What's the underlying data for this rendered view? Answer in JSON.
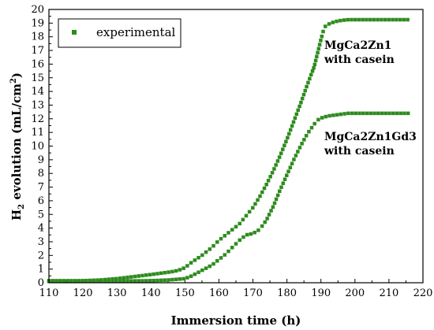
{
  "chart_data": {
    "type": "scatter",
    "xlabel": "Immersion time (h)",
    "ylabel_main": "H",
    "ylabel_sub": "2",
    "ylabel_rest": " evolution (mL/cm",
    "ylabel_sup": "2",
    "ylabel_end": ")",
    "xlim": [
      110,
      220
    ],
    "ylim": [
      0,
      20
    ],
    "xticks": [
      110,
      120,
      130,
      140,
      150,
      160,
      170,
      180,
      190,
      200,
      210,
      220
    ],
    "yticks": [
      0,
      1,
      2,
      3,
      4,
      5,
      6,
      7,
      8,
      9,
      10,
      11,
      12,
      13,
      14,
      15,
      16,
      17,
      18,
      19,
      20
    ],
    "legend": {
      "label": "experimental",
      "position": "top-left"
    },
    "marker_color": "#2e8b1e",
    "annotations": [
      {
        "lines": [
          "MgCa2Zn1",
          "with casein"
        ],
        "series": 0
      },
      {
        "lines": [
          "MgCa2Zn1Gd3",
          "with casein"
        ],
        "series": 1
      }
    ],
    "series": [
      {
        "x": [
          110,
          120,
          125,
          130,
          135,
          140,
          143,
          146,
          148,
          150,
          152,
          155,
          158,
          160,
          163,
          166,
          168,
          170,
          172,
          174,
          176,
          178,
          180,
          182,
          184,
          186,
          188,
          189,
          190,
          191,
          192,
          194,
          196,
          198,
          200,
          205,
          210,
          216
        ],
        "y": [
          0.15,
          0.15,
          0.2,
          0.3,
          0.45,
          0.6,
          0.7,
          0.8,
          0.9,
          1.1,
          1.5,
          2.0,
          2.6,
          3.1,
          3.7,
          4.3,
          4.9,
          5.5,
          6.3,
          7.2,
          8.2,
          9.3,
          10.5,
          11.8,
          13.1,
          14.5,
          15.8,
          16.8,
          17.8,
          18.7,
          18.9,
          19.1,
          19.2,
          19.25,
          19.25,
          19.25,
          19.25,
          19.25
        ]
      },
      {
        "x": [
          110,
          120,
          130,
          140,
          145,
          150,
          152,
          155,
          158,
          160,
          162,
          164,
          166,
          168,
          170,
          172,
          174,
          176,
          178,
          180,
          182,
          184,
          186,
          188,
          189,
          190,
          192,
          195,
          198,
          200,
          205,
          210,
          216
        ],
        "y": [
          0.1,
          0.1,
          0.12,
          0.15,
          0.2,
          0.3,
          0.5,
          0.9,
          1.3,
          1.7,
          2.1,
          2.6,
          3.1,
          3.5,
          3.6,
          3.9,
          4.6,
          5.6,
          6.8,
          7.9,
          9.0,
          10.0,
          10.9,
          11.6,
          11.9,
          12.05,
          12.2,
          12.3,
          12.4,
          12.4,
          12.4,
          12.4,
          12.4
        ]
      }
    ]
  }
}
